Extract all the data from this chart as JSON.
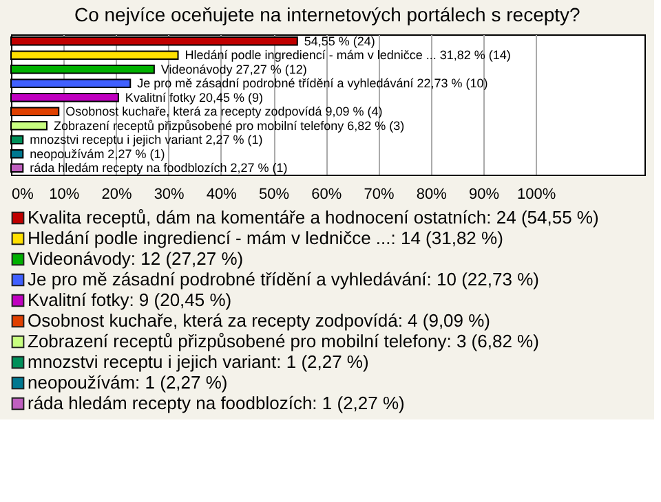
{
  "chart_data": {
    "type": "bar",
    "orientation": "horizontal",
    "title": "Co nejvíce oceňujete na internetových portálech s recepty?",
    "categories": [
      null,
      null,
      null,
      null,
      null,
      null,
      null,
      null,
      null,
      null
    ],
    "series": [
      {
        "name": "Kvalita receptů, dám na komentáře a hodnocení ostatních: 24 (54,55 %)",
        "color": "#c00000",
        "values": [
          54.55,
          null,
          null,
          null,
          null,
          null,
          null,
          null,
          null,
          null
        ],
        "value_labels": [
          "54,55 % (24)",
          null,
          null,
          null,
          null,
          null,
          null,
          null,
          null,
          null
        ]
      },
      {
        "name": "Hledání podle ingrediencí - mám v ledničce ...: 14 (31,82 %)",
        "color": "#ffe000",
        "values": [
          null,
          31.82,
          null,
          null,
          null,
          null,
          null,
          null,
          null,
          null
        ],
        "value_labels": [
          null,
          "Hledání podle ingrediencí - mám v ledničce ... 31,82 % (14)",
          null,
          null,
          null,
          null,
          null,
          null,
          null,
          null
        ]
      },
      {
        "name": "Videonávody: 12 (27,27 %)",
        "color": "#00b000",
        "values": [
          null,
          null,
          27.27,
          null,
          null,
          null,
          null,
          null,
          null,
          null
        ],
        "value_labels": [
          null,
          null,
          "Videonávody 27,27 % (12)",
          null,
          null,
          null,
          null,
          null,
          null,
          null
        ]
      },
      {
        "name": "Je pro mě zásadní podrobné třídění a vyhledávání: 10 (22,73 %)",
        "color": "#4060ff",
        "values": [
          null,
          null,
          null,
          22.73,
          null,
          null,
          null,
          null,
          null,
          null
        ],
        "value_labels": [
          null,
          null,
          null,
          "Je pro mě zásadní podrobné třídění a vyhledávání 22,73 % (10)",
          null,
          null,
          null,
          null,
          null,
          null
        ]
      },
      {
        "name": "Kvalitní fotky: 9 (20,45 %)",
        "color": "#c000c0",
        "values": [
          null,
          null,
          null,
          null,
          20.45,
          null,
          null,
          null,
          null,
          null
        ],
        "value_labels": [
          null,
          null,
          null,
          null,
          "Kvalitní fotky 20,45 % (9)",
          null,
          null,
          null,
          null,
          null
        ]
      },
      {
        "name": "Osobnost kuchaře, která za recepty zodpovídá: 4 (9,09 %)",
        "color": "#e04000",
        "values": [
          null,
          null,
          null,
          null,
          null,
          9.09,
          null,
          null,
          null,
          null
        ],
        "value_labels": [
          null,
          null,
          null,
          null,
          null,
          "Osobnost kuchaře, která za recepty zodpovídá 9,09 % (4)",
          null,
          null,
          null,
          null
        ]
      },
      {
        "name": "Zobrazení receptů přizpůsobené pro mobilní telefony: 3 (6,82 %)",
        "color": "#c8ff80",
        "values": [
          null,
          null,
          null,
          null,
          null,
          null,
          6.82,
          null,
          null,
          null
        ],
        "value_labels": [
          null,
          null,
          null,
          null,
          null,
          null,
          "Zobrazení receptů přizpůsobené pro mobilní telefony 6,82 % (3)",
          null,
          null,
          null
        ]
      },
      {
        "name": "mnozstvi receptu i jejich variant: 1 (2,27 %)",
        "color": "#00905a",
        "values": [
          null,
          null,
          null,
          null,
          null,
          null,
          null,
          2.27,
          null,
          null
        ],
        "value_labels": [
          null,
          null,
          null,
          null,
          null,
          null,
          null,
          "mnozstvi receptu i jejich variant 2,27 % (1)",
          null,
          null
        ]
      },
      {
        "name": "neopoužívám: 1 (2,27 %)",
        "color": "#007890",
        "values": [
          null,
          null,
          null,
          null,
          null,
          null,
          null,
          null,
          2.27,
          null
        ],
        "value_labels": [
          null,
          null,
          null,
          null,
          null,
          null,
          null,
          null,
          "neopoužívám 2,27 % (1)",
          null
        ]
      },
      {
        "name": "ráda hledám recepty na foodblozích: 1 (2,27 %)",
        "color": "#c060c0",
        "values": [
          null,
          null,
          null,
          null,
          null,
          null,
          null,
          null,
          null,
          2.27
        ],
        "value_labels": [
          null,
          null,
          null,
          null,
          null,
          null,
          null,
          null,
          null,
          "ráda hledám recepty na foodblozích 2,27 % (1)"
        ]
      }
    ],
    "xlim": [
      0,
      120.7
    ],
    "xticks": [
      {
        "value": 0,
        "label": "0%"
      },
      {
        "value": 10,
        "label": "10%"
      },
      {
        "value": 20,
        "label": "20%"
      },
      {
        "value": 30,
        "label": "30%"
      },
      {
        "value": 40,
        "label": "40%"
      },
      {
        "value": 50,
        "label": "50%"
      },
      {
        "value": 60,
        "label": "60%"
      },
      {
        "value": 70,
        "label": "70%"
      },
      {
        "value": 80,
        "label": "80%"
      },
      {
        "value": 90,
        "label": "90%"
      },
      {
        "value": 100,
        "label": "100%"
      }
    ],
    "grid": "x",
    "legend": "bottom",
    "tick_labels": "x"
  }
}
